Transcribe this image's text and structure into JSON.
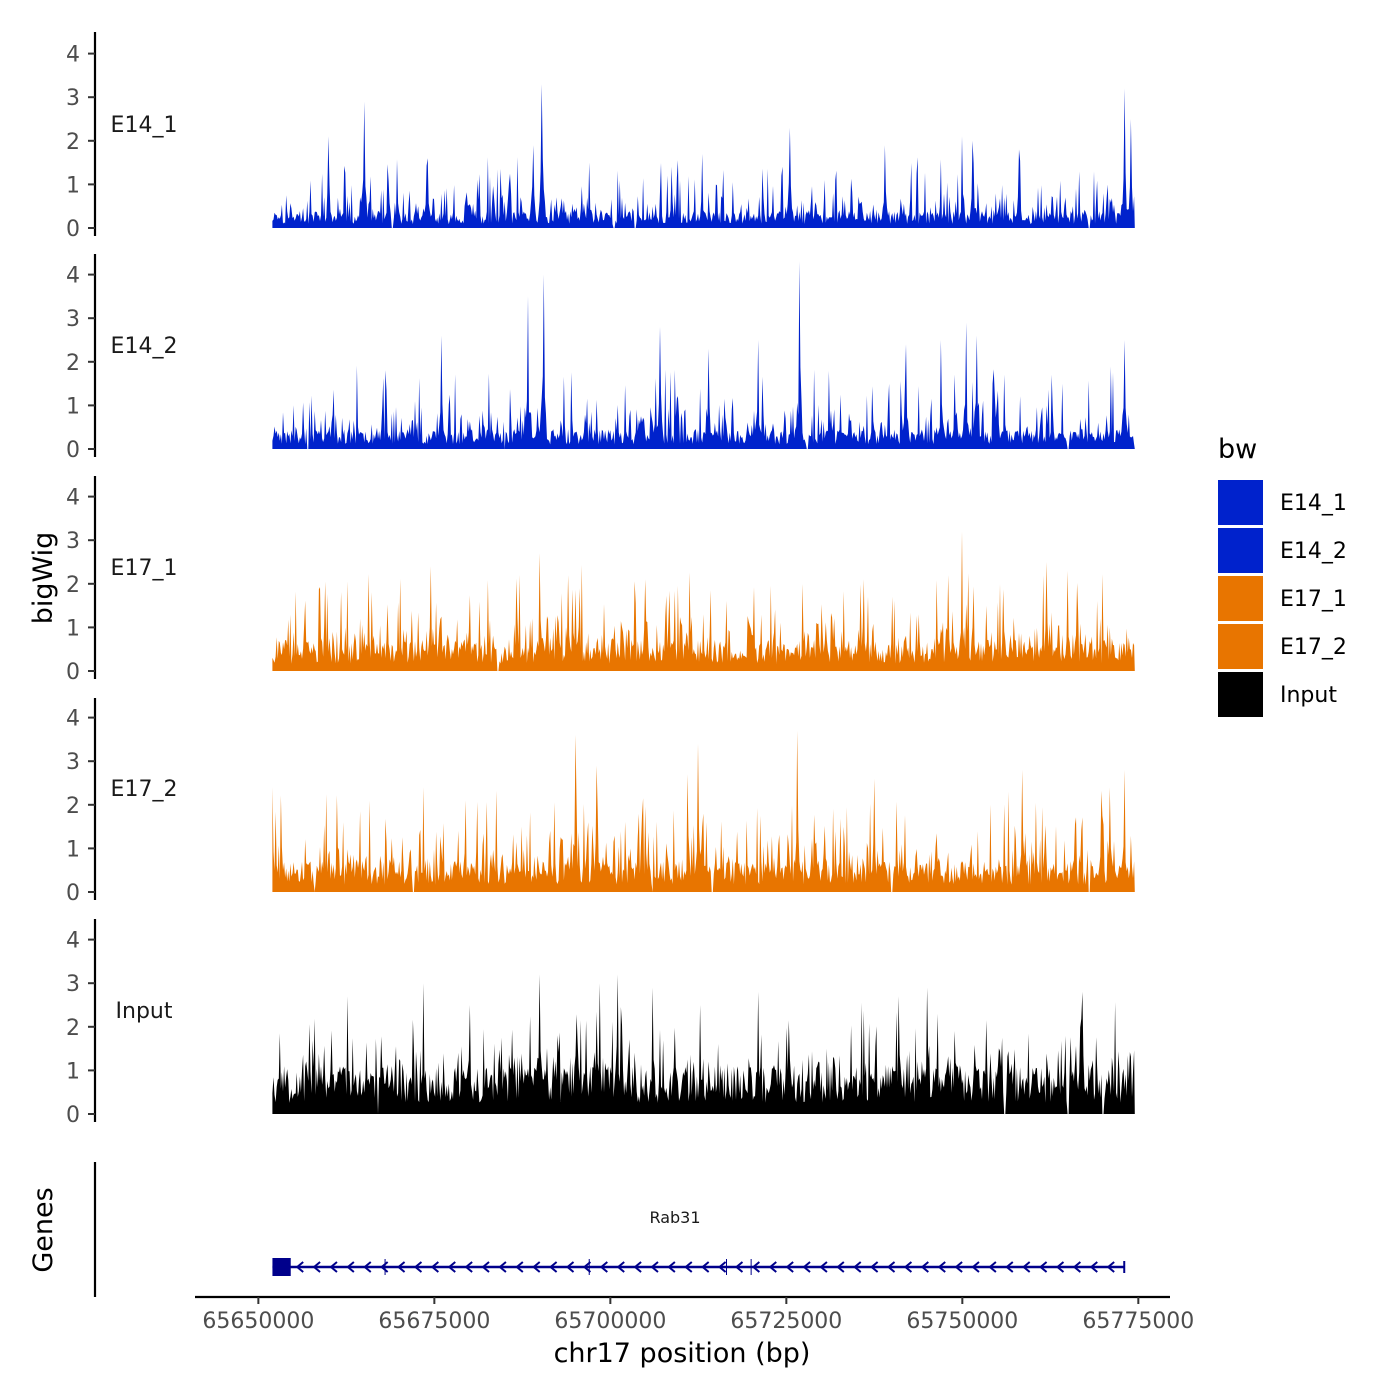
{
  "chart_data": {
    "type": "area",
    "title": "",
    "ylabel": "bigWig",
    "xlabel": "chr17 position (bp)",
    "genes_label": "Genes",
    "xlim": [
      65641000,
      65779500
    ],
    "ylim": [
      0,
      4.4
    ],
    "x_ticks": [
      65650000,
      65675000,
      65700000,
      65725000,
      65750000,
      65775000
    ],
    "x_tick_labels": [
      "65650000",
      "65675000",
      "65700000",
      "65725000",
      "65750000",
      "65775000"
    ],
    "y_ticks": [
      0,
      1,
      2,
      3,
      4
    ],
    "y_tick_labels": [
      "0",
      "1",
      "2",
      "3",
      "4"
    ],
    "data_range": [
      65652000,
      65774500
    ],
    "legend": {
      "title": "bw",
      "position": "right",
      "entries": [
        {
          "label": "E14_1",
          "color": "#0022cc"
        },
        {
          "label": "E14_2",
          "color": "#0022cc"
        },
        {
          "label": "E17_1",
          "color": "#e87500"
        },
        {
          "label": "E17_2",
          "color": "#e87500"
        },
        {
          "label": "Input",
          "color": "#000000"
        }
      ]
    },
    "series": [
      {
        "name": "E14_1",
        "color": "#0022cc",
        "baseline": 0.3,
        "noise": 0.75,
        "seed": 11,
        "gaps": [
          65669000,
          65700500,
          65703500,
          65768000
        ],
        "peaks": [
          {
            "x": 65665000,
            "y": 2.9
          },
          {
            "x": 65690300,
            "y": 3.3
          },
          {
            "x": 65689000,
            "y": 1.9
          },
          {
            "x": 65660000,
            "y": 2.1
          },
          {
            "x": 65674000,
            "y": 1.6
          },
          {
            "x": 65697000,
            "y": 1.5
          },
          {
            "x": 65713000,
            "y": 1.7
          },
          {
            "x": 65725500,
            "y": 2.3
          },
          {
            "x": 65739000,
            "y": 1.9
          },
          {
            "x": 65750000,
            "y": 2.1
          },
          {
            "x": 65751500,
            "y": 2.0
          },
          {
            "x": 65758000,
            "y": 1.8
          },
          {
            "x": 65773000,
            "y": 3.2
          },
          {
            "x": 65774000,
            "y": 2.5
          }
        ]
      },
      {
        "name": "E14_2",
        "color": "#0022cc",
        "baseline": 0.35,
        "noise": 0.9,
        "seed": 23,
        "gaps": [
          65657000,
          65685000,
          65728000,
          65765000
        ],
        "peaks": [
          {
            "x": 65676000,
            "y": 2.6
          },
          {
            "x": 65688300,
            "y": 3.5
          },
          {
            "x": 65690500,
            "y": 4.0
          },
          {
            "x": 65707000,
            "y": 2.8
          },
          {
            "x": 65714000,
            "y": 2.3
          },
          {
            "x": 65721000,
            "y": 2.5
          },
          {
            "x": 65726900,
            "y": 4.3
          },
          {
            "x": 65742000,
            "y": 2.4
          },
          {
            "x": 65747000,
            "y": 2.5
          },
          {
            "x": 65750500,
            "y": 2.9
          },
          {
            "x": 65752000,
            "y": 2.6
          },
          {
            "x": 65773000,
            "y": 2.5
          }
        ]
      },
      {
        "name": "E17_1",
        "color": "#e87500",
        "baseline": 0.55,
        "noise": 1.05,
        "seed": 37,
        "gaps": [
          65684000
        ],
        "peaks": [
          {
            "x": 65674500,
            "y": 2.4
          },
          {
            "x": 65690000,
            "y": 2.7
          },
          {
            "x": 65694000,
            "y": 2.2
          },
          {
            "x": 65705000,
            "y": 2.1
          },
          {
            "x": 65736000,
            "y": 2.1
          },
          {
            "x": 65748000,
            "y": 2.2
          },
          {
            "x": 65750000,
            "y": 3.2
          },
          {
            "x": 65762000,
            "y": 2.5
          },
          {
            "x": 65765000,
            "y": 2.3
          },
          {
            "x": 65774500,
            "y": 2.5
          }
        ]
      },
      {
        "name": "E17_2",
        "color": "#e87500",
        "baseline": 0.55,
        "noise": 1.05,
        "seed": 51,
        "gaps": [
          65658000,
          65672000,
          65706000,
          65714500,
          65740000,
          65768000
        ],
        "peaks": [
          {
            "x": 65652000,
            "y": 2.4
          },
          {
            "x": 65695000,
            "y": 3.6
          },
          {
            "x": 65698000,
            "y": 2.9
          },
          {
            "x": 65712500,
            "y": 3.4
          },
          {
            "x": 65711000,
            "y": 2.7
          },
          {
            "x": 65726500,
            "y": 3.7
          },
          {
            "x": 65737500,
            "y": 2.6
          },
          {
            "x": 65758500,
            "y": 2.8
          },
          {
            "x": 65771000,
            "y": 2.4
          },
          {
            "x": 65773000,
            "y": 2.8
          }
        ]
      },
      {
        "name": "Input",
        "color": "#000000",
        "baseline": 0.85,
        "noise": 1.0,
        "seed": 67,
        "gaps": [
          65667000,
          65756000,
          65765000,
          65770000
        ],
        "peaks": [
          {
            "x": 65673500,
            "y": 3.0
          },
          {
            "x": 65680000,
            "y": 2.5
          },
          {
            "x": 65690000,
            "y": 3.2
          },
          {
            "x": 65698500,
            "y": 3.0
          },
          {
            "x": 65701000,
            "y": 3.2
          },
          {
            "x": 65706000,
            "y": 2.9
          },
          {
            "x": 65721000,
            "y": 2.8
          },
          {
            "x": 65741000,
            "y": 2.7
          },
          {
            "x": 65745000,
            "y": 2.9
          },
          {
            "x": 65767000,
            "y": 2.8
          },
          {
            "x": 65774500,
            "y": 3.3
          }
        ]
      }
    ],
    "gene": {
      "name": "Rab31",
      "strand": "-",
      "color": "#00008b",
      "start": 65652000,
      "end": 65773000,
      "exons": [
        [
          65652000,
          65654600
        ]
      ],
      "introns_marks": [
        65668000,
        65697000,
        65716500,
        65720000
      ]
    }
  }
}
